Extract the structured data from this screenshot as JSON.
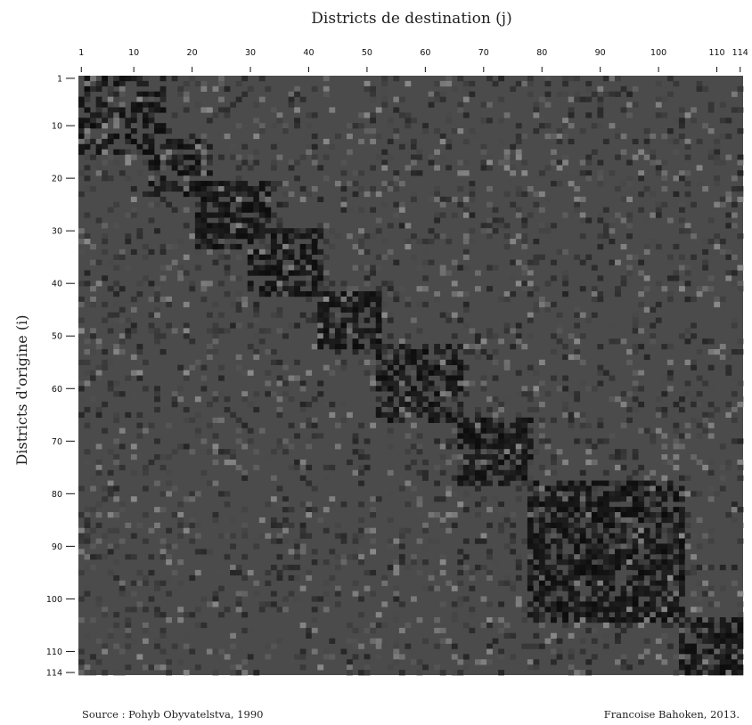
{
  "chart_data": {
    "type": "heatmap",
    "title": "",
    "xlabel": "Districts de destination (j)",
    "ylabel": "Districts d'origine (i)",
    "x_ticks": [
      1,
      10,
      20,
      30,
      40,
      50,
      60,
      70,
      80,
      90,
      100,
      110,
      114
    ],
    "y_ticks": [
      1,
      10,
      20,
      30,
      40,
      50,
      60,
      70,
      80,
      90,
      100,
      110,
      114
    ],
    "n_origins": 114,
    "n_destinations": 114,
    "blocks": [
      {
        "from": 1,
        "to": 15,
        "intensity": 0.55
      },
      {
        "from": 13,
        "to": 23,
        "intensity": 0.6
      },
      {
        "from": 21,
        "to": 33,
        "intensity": 0.8
      },
      {
        "from": 30,
        "to": 42,
        "intensity": 0.8
      },
      {
        "from": 42,
        "to": 52,
        "intensity": 0.85
      },
      {
        "from": 52,
        "to": 66,
        "intensity": 0.75
      },
      {
        "from": 66,
        "to": 78,
        "intensity": 0.9
      },
      {
        "from": 78,
        "to": 104,
        "intensity": 0.8
      },
      {
        "from": 104,
        "to": 114,
        "intensity": 0.85
      }
    ],
    "colors": {
      "background": "#4b4b4b",
      "low": "#3a3a3a",
      "high": "#0c0c0c",
      "spark": "#8a8a8a"
    },
    "grid": false
  },
  "footer": {
    "source": "Source : Pohyb Obyvatelstva, 1990",
    "credit": "Francoise Bahoken, 2013."
  }
}
